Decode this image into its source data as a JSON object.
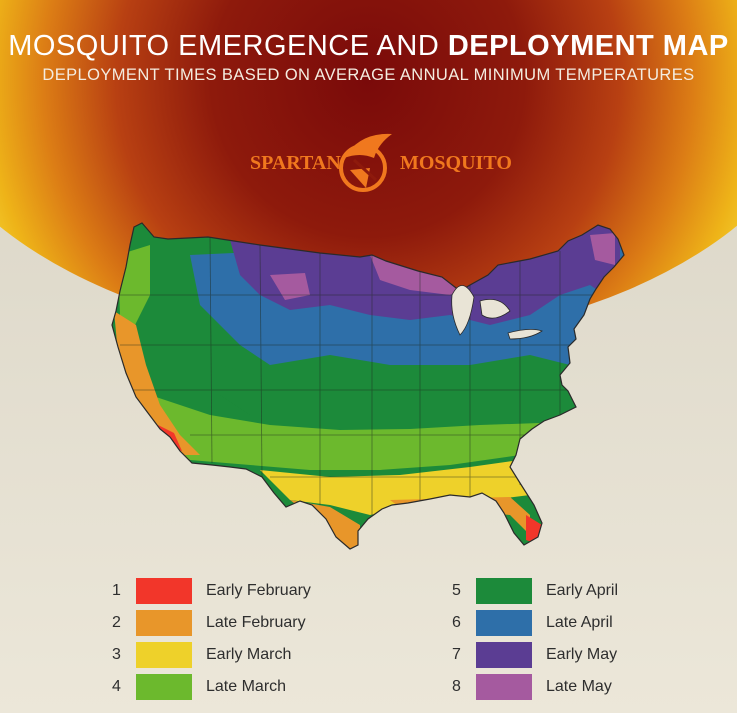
{
  "header": {
    "title_regular": "MOSQUITO EMERGENCE AND ",
    "title_bold": "DEPLOYMENT MAP",
    "subtitle": "DEPLOYMENT TIMES BASED ON AVERAGE ANNUAL MINIMUM TEMPERATURES"
  },
  "logo": {
    "left_text": "SPARTAN",
    "right_text": "MOSQUITO",
    "color": "#f0781e"
  },
  "map": {
    "region": "Contiguous United States",
    "zone_colors": {
      "1": "#f2362a",
      "2": "#e8962a",
      "3": "#eed12a",
      "4": "#6cb92d",
      "5": "#1c8a3a",
      "6": "#2e6fa9",
      "7": "#5b3d93",
      "8": "#a55a9f"
    }
  },
  "legend": [
    {
      "number": "1",
      "label": "Early February",
      "color": "#f2362a"
    },
    {
      "number": "2",
      "label": "Late February",
      "color": "#e8962a"
    },
    {
      "number": "3",
      "label": "Early March",
      "color": "#eed12a"
    },
    {
      "number": "4",
      "label": "Late March",
      "color": "#6cb92d"
    },
    {
      "number": "5",
      "label": "Early April",
      "color": "#1c8a3a"
    },
    {
      "number": "6",
      "label": "Late April",
      "color": "#2e6fa9"
    },
    {
      "number": "7",
      "label": "Early May",
      "color": "#5b3d93"
    },
    {
      "number": "8",
      "label": "Late May",
      "color": "#a55a9f"
    }
  ]
}
